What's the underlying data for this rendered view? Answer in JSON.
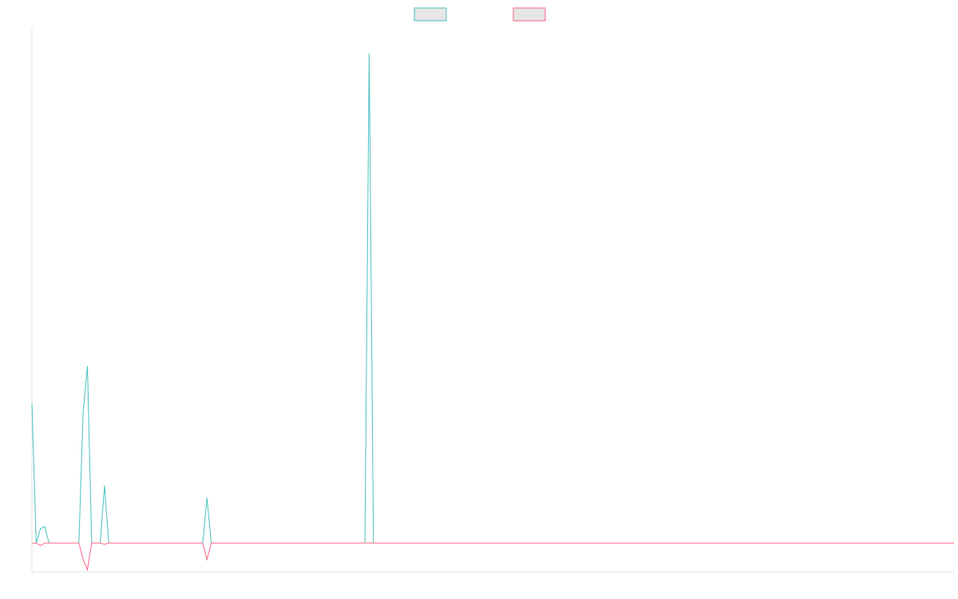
{
  "chart_data": {
    "type": "line",
    "x_count": 217,
    "xlim": [
      0,
      216
    ],
    "ylim": [
      -7,
      125
    ],
    "grid": false,
    "legend_position": "top-center",
    "series": [
      {
        "color": "#4bc0c0",
        "fill": "#e6e6e6",
        "points": [
          [
            0,
            34
          ],
          [
            1,
            0
          ],
          [
            2,
            3.5
          ],
          [
            3,
            4
          ],
          [
            4,
            0
          ],
          [
            11,
            0
          ],
          [
            12,
            32
          ],
          [
            13,
            43
          ],
          [
            14,
            0
          ],
          [
            16,
            0
          ],
          [
            17,
            14
          ],
          [
            18,
            0
          ],
          [
            40,
            0
          ],
          [
            41,
            11
          ],
          [
            42,
            0
          ],
          [
            78,
            0
          ],
          [
            79,
            119
          ],
          [
            80,
            0
          ],
          [
            216,
            0
          ]
        ]
      },
      {
        "color": "#ff6384",
        "fill": "#e6e6e6",
        "points": [
          [
            0,
            0
          ],
          [
            1,
            0
          ],
          [
            2,
            -0.6
          ],
          [
            3,
            0
          ],
          [
            11,
            0
          ],
          [
            12,
            -4
          ],
          [
            13,
            -6.5
          ],
          [
            14,
            0
          ],
          [
            16,
            0
          ],
          [
            17,
            -0.3
          ],
          [
            18,
            0
          ],
          [
            40,
            0
          ],
          [
            41,
            -4
          ],
          [
            42,
            0
          ],
          [
            216,
            0
          ]
        ]
      }
    ]
  }
}
